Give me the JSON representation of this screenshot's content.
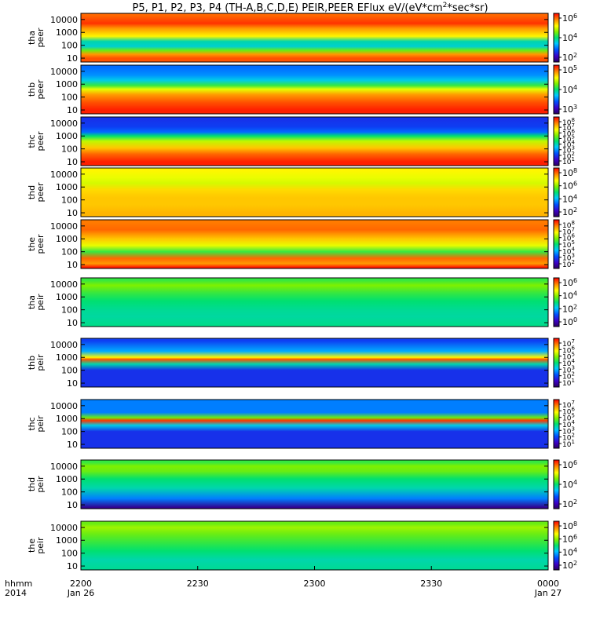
{
  "chart_data": {
    "type": "heatmap",
    "title": "P5, P1, P2, P3, P4 (TH-A,B,C,D,E) PEIR,PEER EFlux eV/(eV*cm",
    "title_sup": "2",
    "title_tail": "*sec*sr)",
    "x_axis": {
      "row_label_1": "hhmm",
      "row_label_2": "2014",
      "ticks": [
        {
          "label": "2200",
          "sub": "Jan 26",
          "hours": 0.0
        },
        {
          "label": "2230",
          "sub": "",
          "hours": 0.5
        },
        {
          "label": "2300",
          "sub": "",
          "hours": 1.0
        },
        {
          "label": "2330",
          "sub": "",
          "hours": 1.5
        },
        {
          "label": "0000",
          "sub": "Jan 27",
          "hours": 2.0
        }
      ],
      "range_hours": [
        0,
        2
      ]
    },
    "y_ticks": [
      "10000",
      "1000",
      "100",
      "10"
    ],
    "y_scale": "log",
    "ylim": [
      5,
      30000
    ],
    "colormap": "rainbow (purple-blue-cyan-green-yellow-orange-red)",
    "panels": [
      {
        "probe": "tha",
        "species": "peer",
        "cbar": [
          {
            "base": "10",
            "exp": "6"
          },
          {
            "base": "10",
            "exp": "4"
          },
          {
            "base": "10",
            "exp": "2"
          }
        ],
        "bands": [
          {
            "e": 10,
            "level": 0.92
          },
          {
            "e": 20,
            "level": 0.85
          },
          {
            "e": 40,
            "level": 0.6
          },
          {
            "e": 80,
            "level": 0.42
          },
          {
            "e": 200,
            "level": 0.45
          },
          {
            "e": 500,
            "level": 0.75
          },
          {
            "e": 2000,
            "level": 0.85
          },
          {
            "e": 5000,
            "level": 0.95
          },
          {
            "e": 20000,
            "level": 0.9
          }
        ]
      },
      {
        "probe": "thb",
        "species": "peer",
        "cbar": [
          {
            "base": "10",
            "exp": "5"
          },
          {
            "base": "10",
            "exp": "4"
          },
          {
            "base": "10",
            "exp": "3"
          }
        ],
        "bands": [
          {
            "e": 10,
            "level": 0.97
          },
          {
            "e": 40,
            "level": 0.92
          },
          {
            "e": 150,
            "level": 0.85
          },
          {
            "e": 400,
            "level": 0.72
          },
          {
            "e": 800,
            "level": 0.55
          },
          {
            "e": 2000,
            "level": 0.4
          },
          {
            "e": 5000,
            "level": 0.32
          },
          {
            "e": 20000,
            "level": 0.28
          }
        ]
      },
      {
        "probe": "thc",
        "species": "peer",
        "cbar": [
          {
            "base": "10",
            "exp": "8"
          },
          {
            "base": "10",
            "exp": "7"
          },
          {
            "base": "10",
            "exp": "6"
          },
          {
            "base": "10",
            "exp": "5"
          },
          {
            "base": "10",
            "exp": "4"
          },
          {
            "base": "10",
            "exp": "3"
          },
          {
            "base": "10",
            "exp": "2"
          },
          {
            "base": "10",
            "exp": "1"
          }
        ],
        "bands": [
          {
            "e": 10,
            "level": 0.97
          },
          {
            "e": 40,
            "level": 0.9
          },
          {
            "e": 120,
            "level": 0.8
          },
          {
            "e": 400,
            "level": 0.68
          },
          {
            "e": 1000,
            "level": 0.5
          },
          {
            "e": 2000,
            "level": 0.28
          },
          {
            "e": 5000,
            "level": 0.22
          },
          {
            "e": 20000,
            "level": 0.2
          }
        ]
      },
      {
        "probe": "thd",
        "species": "peer",
        "cbar": [
          {
            "base": "10",
            "exp": "8"
          },
          {
            "base": "10",
            "exp": "6"
          },
          {
            "base": "10",
            "exp": "4"
          },
          {
            "base": "10",
            "exp": "2"
          }
        ],
        "bands": [
          {
            "e": 10,
            "level": 0.82
          },
          {
            "e": 40,
            "level": 0.8
          },
          {
            "e": 150,
            "level": 0.8
          },
          {
            "e": 600,
            "level": 0.78
          },
          {
            "e": 2000,
            "level": 0.7
          },
          {
            "e": 5000,
            "level": 0.72
          },
          {
            "e": 20000,
            "level": 0.75
          }
        ]
      },
      {
        "probe": "the",
        "species": "peer",
        "cbar": [
          {
            "base": "10",
            "exp": "8"
          },
          {
            "base": "10",
            "exp": "7"
          },
          {
            "base": "10",
            "exp": "6"
          },
          {
            "base": "10",
            "exp": "5"
          },
          {
            "base": "10",
            "exp": "4"
          },
          {
            "base": "10",
            "exp": "3"
          },
          {
            "base": "10",
            "exp": "2"
          }
        ],
        "bands": [
          {
            "e": 6,
            "level": 0.98
          },
          {
            "e": 12,
            "level": 0.85
          },
          {
            "e": 30,
            "level": 0.9
          },
          {
            "e": 100,
            "level": 0.55
          },
          {
            "e": 300,
            "level": 0.72
          },
          {
            "e": 1000,
            "level": 0.8
          },
          {
            "e": 5000,
            "level": 0.9
          },
          {
            "e": 20000,
            "level": 0.88
          }
        ]
      },
      {
        "probe": "tha",
        "species": "peir",
        "cbar": [
          {
            "base": "10",
            "exp": "6"
          },
          {
            "base": "10",
            "exp": "4"
          },
          {
            "base": "10",
            "exp": "2"
          },
          {
            "base": "10",
            "exp": "0"
          }
        ],
        "bands": [
          {
            "e": 6,
            "level": 0.48
          },
          {
            "e": 30,
            "level": 0.46
          },
          {
            "e": 100,
            "level": 0.47
          },
          {
            "e": 500,
            "level": 0.5
          },
          {
            "e": 2000,
            "level": 0.55
          },
          {
            "e": 8000,
            "level": 0.62
          },
          {
            "e": 20000,
            "level": 0.55
          }
        ]
      },
      {
        "probe": "thb",
        "species": "peir",
        "cbar": [
          {
            "base": "10",
            "exp": "7"
          },
          {
            "base": "10",
            "exp": "6"
          },
          {
            "base": "10",
            "exp": "5"
          },
          {
            "base": "10",
            "exp": "4"
          },
          {
            "base": "10",
            "exp": "3"
          },
          {
            "base": "10",
            "exp": "2"
          },
          {
            "base": "10",
            "exp": "1"
          }
        ],
        "bands": [
          {
            "e": 6,
            "level": 0.2
          },
          {
            "e": 100,
            "level": 0.2
          },
          {
            "e": 300,
            "level": 0.45
          },
          {
            "e": 700,
            "level": 0.92
          },
          {
            "e": 1000,
            "level": 0.75
          },
          {
            "e": 3000,
            "level": 0.35
          },
          {
            "e": 20000,
            "level": 0.22
          }
        ]
      },
      {
        "probe": "thc",
        "species": "peir",
        "cbar": [
          {
            "base": "10",
            "exp": "7"
          },
          {
            "base": "10",
            "exp": "6"
          },
          {
            "base": "10",
            "exp": "5"
          },
          {
            "base": "10",
            "exp": "4"
          },
          {
            "base": "10",
            "exp": "3"
          },
          {
            "base": "10",
            "exp": "2"
          },
          {
            "base": "10",
            "exp": "1"
          }
        ],
        "bands": [
          {
            "e": 6,
            "level": 0.2
          },
          {
            "e": 100,
            "level": 0.2
          },
          {
            "e": 300,
            "level": 0.4
          },
          {
            "e": 700,
            "level": 0.95
          },
          {
            "e": 1200,
            "level": 0.6
          },
          {
            "e": 3000,
            "level": 0.3
          },
          {
            "e": 20000,
            "level": 0.3
          }
        ]
      },
      {
        "probe": "thd",
        "species": "peir",
        "cbar": [
          {
            "base": "10",
            "exp": "6"
          },
          {
            "base": "10",
            "exp": "4"
          },
          {
            "base": "10",
            "exp": "2"
          }
        ],
        "bands": [
          {
            "e": 6,
            "level": 0.05
          },
          {
            "e": 30,
            "level": 0.3
          },
          {
            "e": 200,
            "level": 0.45
          },
          {
            "e": 1000,
            "level": 0.5
          },
          {
            "e": 4000,
            "level": 0.6
          },
          {
            "e": 10000,
            "level": 0.62
          },
          {
            "e": 20000,
            "level": 0.55
          }
        ]
      },
      {
        "probe": "the",
        "species": "peir",
        "cbar": [
          {
            "base": "10",
            "exp": "8"
          },
          {
            "base": "10",
            "exp": "6"
          },
          {
            "base": "10",
            "exp": "4"
          },
          {
            "base": "10",
            "exp": "2"
          }
        ],
        "bands": [
          {
            "e": 6,
            "level": 0.47
          },
          {
            "e": 30,
            "level": 0.45
          },
          {
            "e": 150,
            "level": 0.5
          },
          {
            "e": 700,
            "level": 0.55
          },
          {
            "e": 3000,
            "level": 0.6
          },
          {
            "e": 10000,
            "level": 0.65
          },
          {
            "e": 20000,
            "level": 0.6
          }
        ]
      }
    ]
  }
}
